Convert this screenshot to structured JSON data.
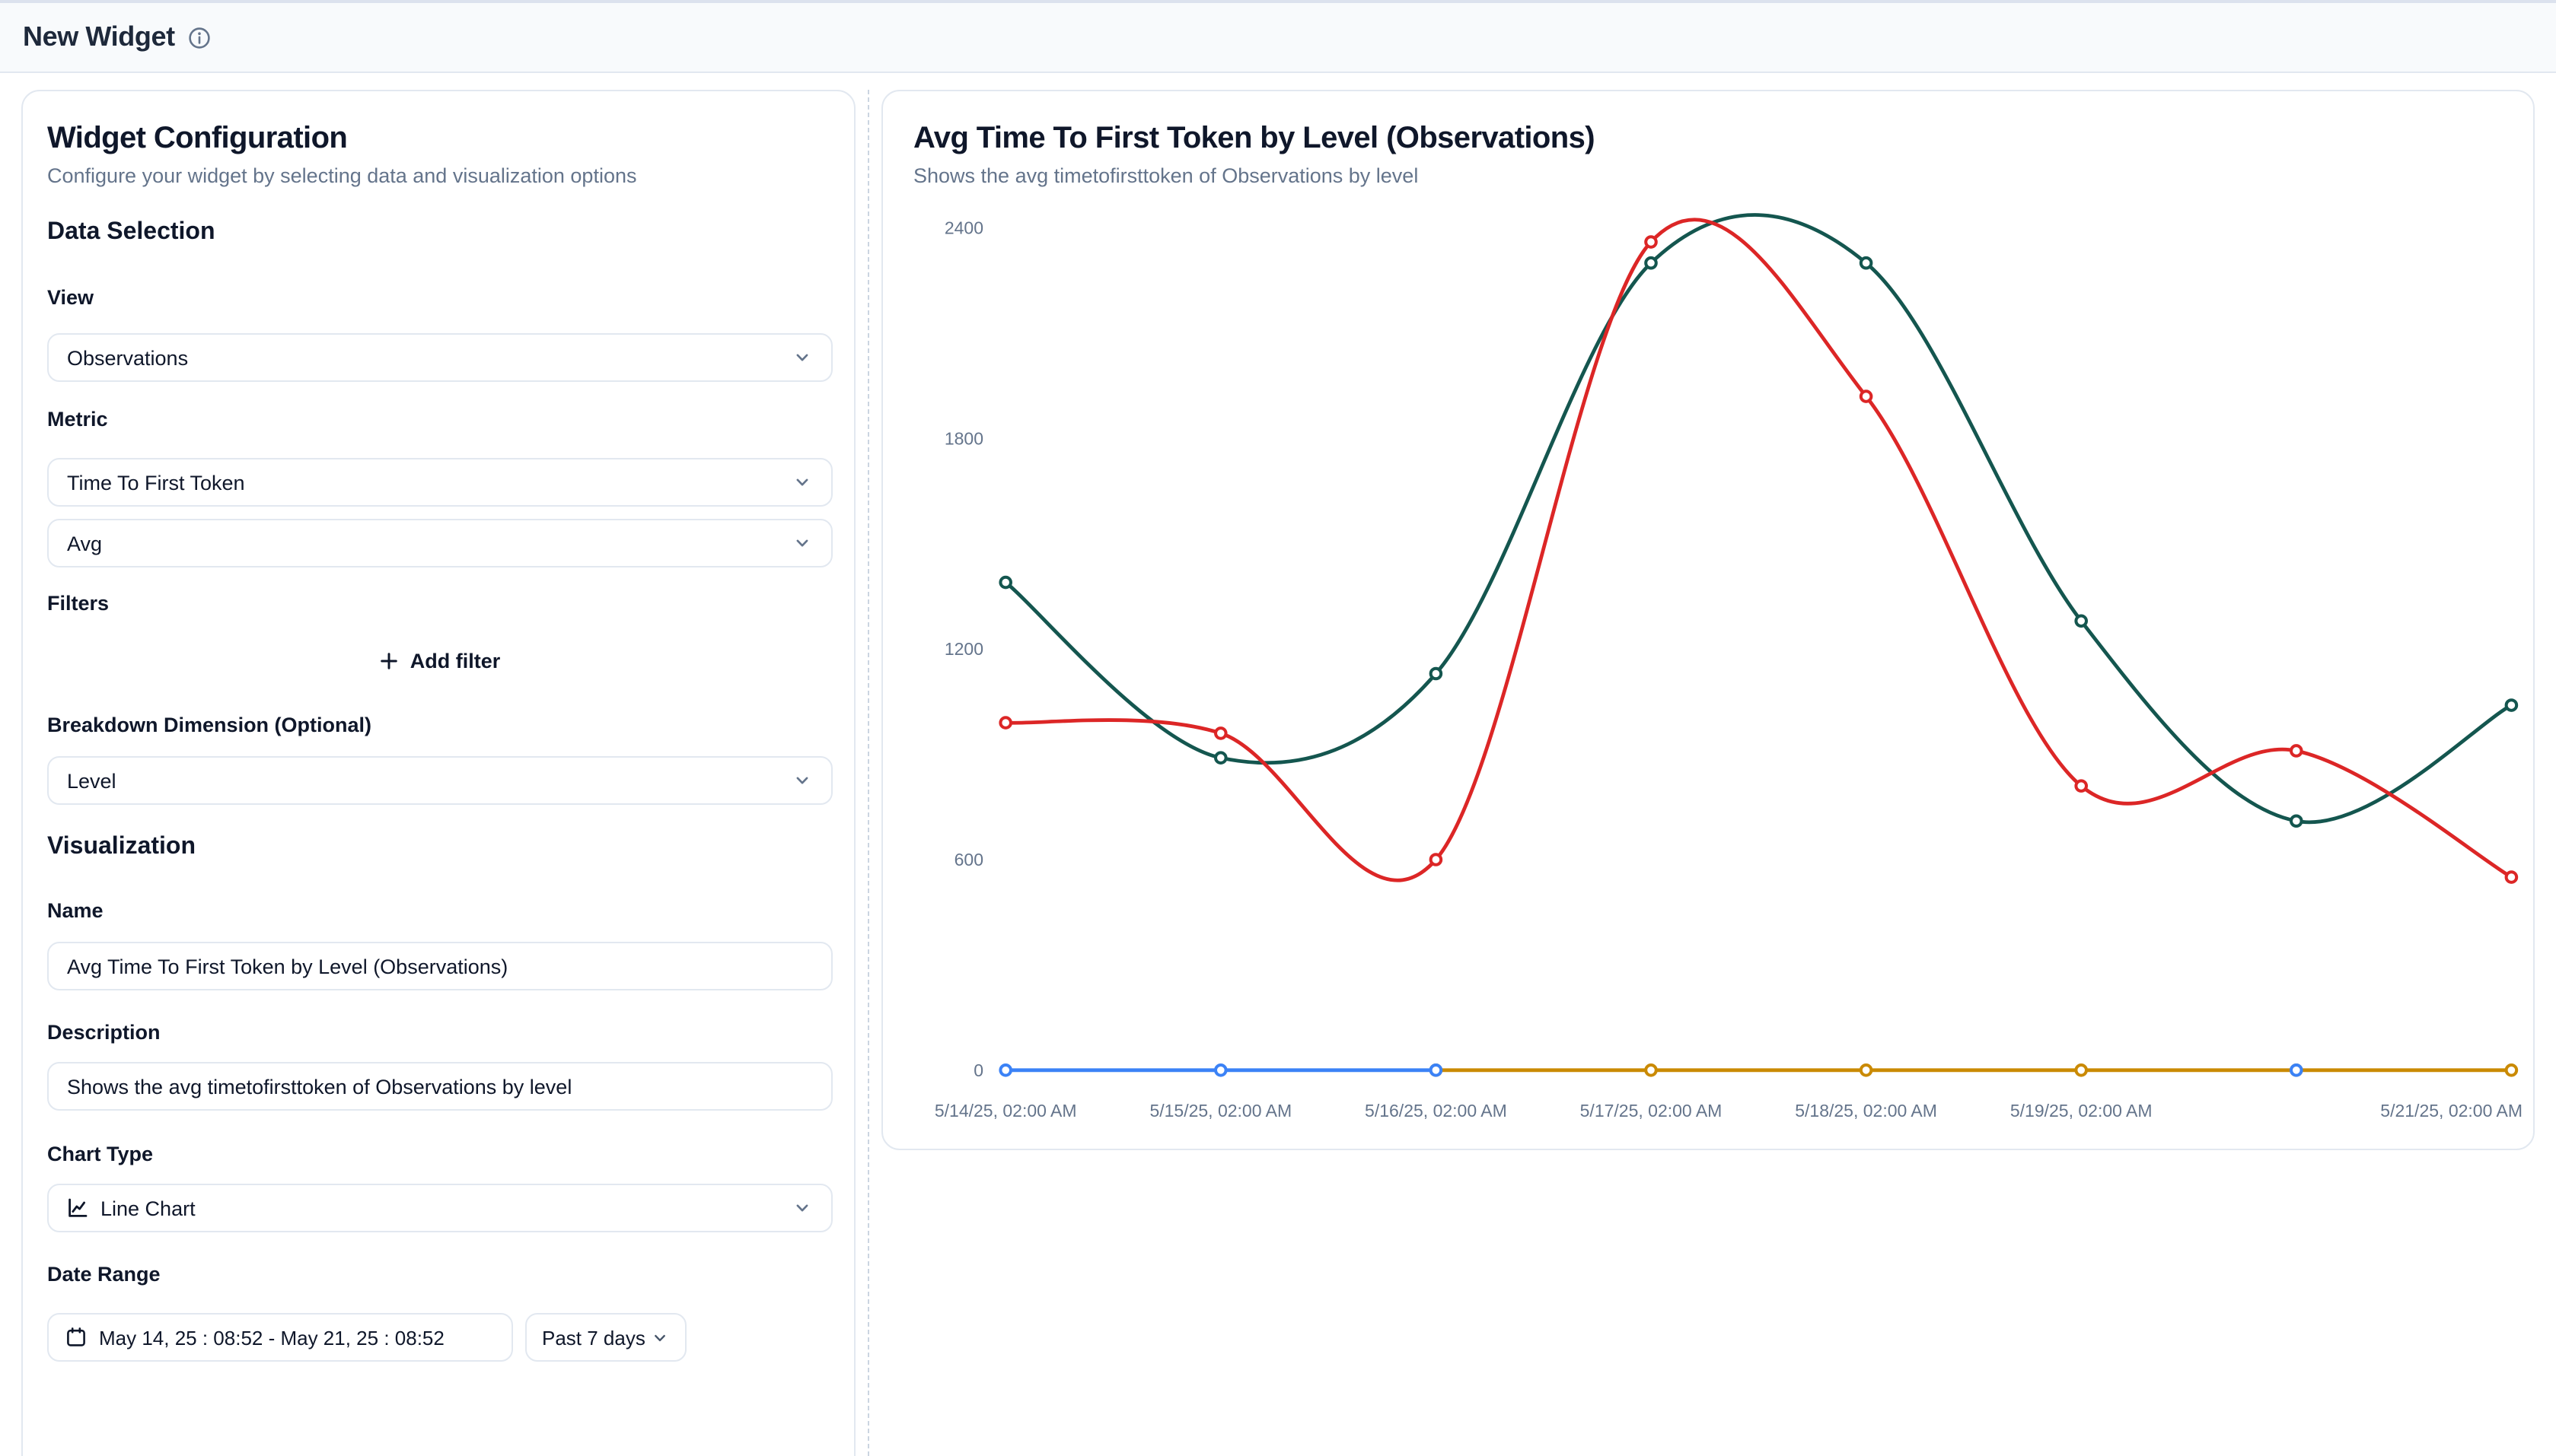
{
  "header": {
    "title": "New Widget"
  },
  "icons": {
    "header_info": "info-icon",
    "add_filter": "plus-icon",
    "chart_type": "line-chart-icon",
    "date_range": "calendar-icon",
    "dropdown": "chevron-down-icon"
  },
  "ui_colors": {
    "header_bg": "#f8fafc",
    "card_border": "#e2e8f0",
    "text_primary": "#0f172a",
    "text_muted": "#64748b"
  },
  "config_panel": {
    "title": "Widget Configuration",
    "subtitle": "Configure your widget by selecting data and visualization options",
    "data_selection": {
      "heading": "Data Selection",
      "view_label": "View",
      "view_value": "Observations",
      "metric_label": "Metric",
      "metric_value": "Time To First Token",
      "aggregation_value": "Avg",
      "filters_label": "Filters",
      "add_filter_label": "Add filter",
      "breakdown_label": "Breakdown Dimension (Optional)",
      "breakdown_value": "Level"
    },
    "visualization": {
      "heading": "Visualization",
      "name_label": "Name",
      "name_value": "Avg Time To First Token by Level (Observations)",
      "description_label": "Description",
      "description_value": "Shows the avg timetofirsttoken of Observations by level",
      "chart_type_label": "Chart Type",
      "chart_type_value": "Line Chart",
      "date_range_label": "Date Range",
      "date_range_value": "May 14, 25 : 08:52 - May 21, 25 : 08:52",
      "date_preset_value": "Past 7 days"
    }
  },
  "chart_card": {
    "title": "Avg Time To First Token by Level (Observations)",
    "subtitle": "Shows the avg timetofirsttoken of Observations by level"
  },
  "chart_data": {
    "type": "line",
    "title": "Avg Time To First Token by Level (Observations)",
    "xlabel": "",
    "ylabel": "",
    "ylim": [
      0,
      2400
    ],
    "yticks": [
      0,
      600,
      1200,
      1800,
      2400
    ],
    "grid": false,
    "legend": "none",
    "x_labels": [
      "5/14/25, 02:00 AM",
      "5/15/25, 02:00 AM",
      "5/16/25, 02:00 AM",
      "5/17/25, 02:00 AM",
      "5/18/25, 02:00 AM",
      "5/19/25, 02:00 AM",
      "",
      "5/21/25, 02:00 AM"
    ],
    "series": [
      {
        "name": "yellow",
        "color": "#CA8A04",
        "values": [
          null,
          null,
          0,
          0,
          0,
          0,
          0,
          0
        ]
      },
      {
        "name": "blue",
        "color": "#3B82F6",
        "values": [
          0,
          0,
          0,
          null,
          null,
          null,
          0,
          null
        ]
      },
      {
        "name": "teal",
        "color": "#14564F",
        "values": [
          1390,
          890,
          1130,
          2300,
          2300,
          1280,
          710,
          1040
        ]
      },
      {
        "name": "red",
        "color": "#DC2626",
        "values": [
          990,
          960,
          600,
          2360,
          1920,
          810,
          910,
          550
        ]
      }
    ]
  }
}
